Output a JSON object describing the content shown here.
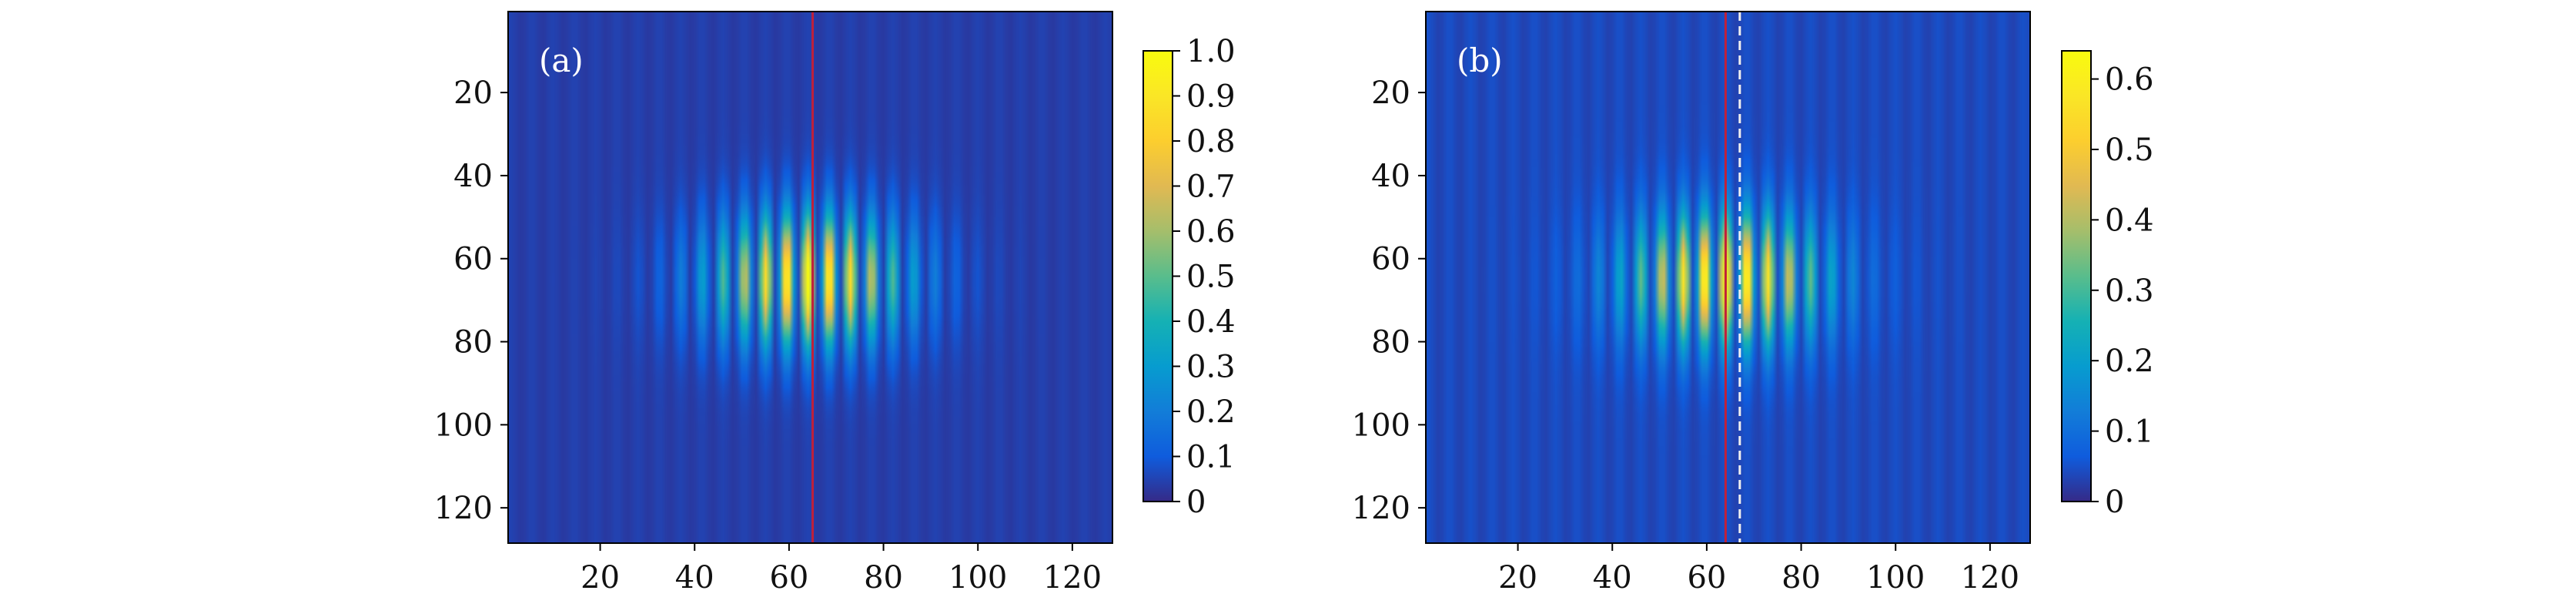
{
  "chart_data": [
    {
      "type": "heatmap",
      "panel_label": "(a)",
      "x_range": [
        1,
        128
      ],
      "y_range": [
        1,
        128
      ],
      "x_ticks": [
        20,
        40,
        60,
        80,
        100,
        120
      ],
      "y_ticks": [
        20,
        40,
        60,
        80,
        100,
        120
      ],
      "y_inverted": true,
      "colormap": "parula",
      "colorbar": {
        "range": [
          0,
          1.0
        ],
        "ticks": [
          0,
          0.1,
          0.2,
          0.3,
          0.4,
          0.5,
          0.6,
          0.7,
          0.8,
          0.9,
          1.0
        ],
        "tick_labels": [
          "0",
          "0.1",
          "0.2",
          "0.3",
          "0.4",
          "0.5",
          "0.6",
          "0.7",
          "0.8",
          "0.9",
          "1.0"
        ]
      },
      "pattern": {
        "description": "vertical fringe pattern under Gaussian envelope",
        "center_x": 64,
        "center_y": 65,
        "envelope_sigma_x": 14,
        "envelope_sigma_y": 11,
        "fringe_period": 4.5,
        "peak_value": 1.0,
        "background_value": 0.03
      },
      "vertical_lines": [
        {
          "x": 65,
          "color": "#c0203a",
          "style": "solid"
        }
      ]
    },
    {
      "type": "heatmap",
      "panel_label": "(b)",
      "x_range": [
        1,
        128
      ],
      "y_range": [
        1,
        128
      ],
      "x_ticks": [
        20,
        40,
        60,
        80,
        100,
        120
      ],
      "y_ticks": [
        20,
        40,
        60,
        80,
        100,
        120
      ],
      "y_inverted": true,
      "colormap": "parula",
      "colorbar": {
        "range": [
          0,
          0.64
        ],
        "ticks": [
          0,
          0.1,
          0.2,
          0.3,
          0.4,
          0.5,
          0.6
        ],
        "tick_labels": [
          "0",
          "0.1",
          "0.2",
          "0.3",
          "0.4",
          "0.5",
          "0.6"
        ]
      },
      "pattern": {
        "description": "vertical fringe pattern under Gaussian envelope",
        "center_x": 64,
        "center_y": 65,
        "envelope_sigma_x": 14,
        "envelope_sigma_y": 11,
        "fringe_period": 4.5,
        "peak_value": 0.64,
        "background_value": 0.03
      },
      "vertical_lines": [
        {
          "x": 64,
          "color": "#c0203a",
          "style": "solid"
        },
        {
          "x": 67,
          "color": "#f0f0f0",
          "style": "dashed"
        }
      ]
    }
  ]
}
